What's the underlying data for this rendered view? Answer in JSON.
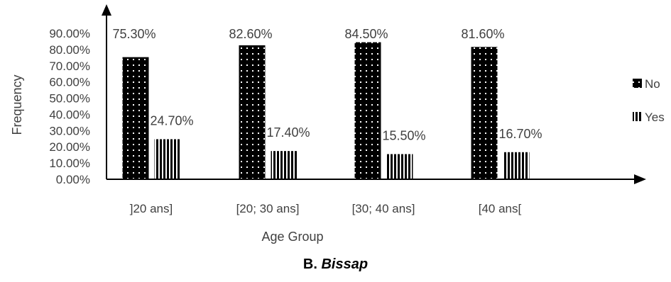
{
  "chart_data": {
    "type": "bar",
    "categories": [
      "]20 ans]",
      "[20; 30 ans]",
      "[30; 40 ans]",
      "[40 ans["
    ],
    "series": [
      {
        "name": "No",
        "values": [
          75.3,
          82.6,
          84.5,
          81.6
        ],
        "labels": [
          "75.30%",
          "82.60%",
          "84.50%",
          "81.60%"
        ]
      },
      {
        "name": "Yes",
        "values": [
          24.7,
          17.4,
          15.5,
          16.7
        ],
        "labels": [
          "24.70%",
          "17.40%",
          "15.50%",
          "16.70%"
        ]
      }
    ],
    "xlabel": "Age Group",
    "ylabel": "Frequency",
    "ylim": [
      0,
      90
    ],
    "yticks": [
      "0.00%",
      "10.00%",
      "20.00%",
      "30.00%",
      "40.00%",
      "50.00%",
      "60.00%",
      "70.00%",
      "80.00%",
      "90.00%"
    ],
    "legend_position": "right",
    "grid": false
  },
  "caption": {
    "prefix": "B. ",
    "name": "Bissap"
  }
}
